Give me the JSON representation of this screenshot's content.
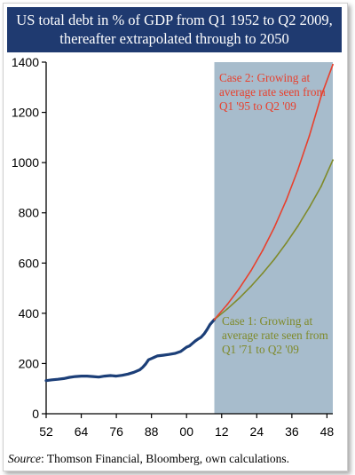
{
  "title": {
    "line1": "US total debt in % of GDP from Q1 1952 to Q2 2009,",
    "line2": "thereafter extrapolated through to 2050"
  },
  "source": {
    "label": "Source",
    "text": ": Thomson Financial, Bloomberg, own calculations."
  },
  "colors": {
    "title_bg": "#1f3a70",
    "history": "#1c3f78",
    "forecast_bg": "#a7bccc",
    "case1": "#7f8a2a",
    "case2": "#e8402d"
  },
  "chart_data": {
    "type": "line",
    "title": "US total debt in % of GDP from Q1 1952 to Q2 2009, thereafter extrapolated through to 2050",
    "xlabel": "",
    "ylabel": "",
    "xlim": [
      1952,
      2050
    ],
    "ylim": [
      0,
      1400
    ],
    "x_tick_labels": [
      "52",
      "64",
      "76",
      "88",
      "00",
      "12",
      "24",
      "36",
      "48"
    ],
    "x_tick_values": [
      1952,
      1964,
      1976,
      1988,
      2000,
      2012,
      2024,
      2036,
      2048
    ],
    "y_ticks": [
      0,
      200,
      400,
      600,
      800,
      1000,
      1200,
      1400
    ],
    "grid": false,
    "shaded_region": {
      "from": 2009.5,
      "to": 2050
    },
    "series": [
      {
        "key": "history",
        "x": [
          1952,
          1954,
          1956,
          1958,
          1960,
          1962,
          1964,
          1966,
          1968,
          1970,
          1972,
          1974,
          1976,
          1978,
          1980,
          1982,
          1984,
          1985,
          1986,
          1987,
          1988,
          1989,
          1990,
          1992,
          1994,
          1996,
          1998,
          2000,
          2001,
          2002,
          2003,
          2004,
          2005,
          2006,
          2007,
          2008,
          2009.5
        ],
        "y": [
          132,
          135,
          137,
          140,
          145,
          148,
          150,
          150,
          148,
          146,
          150,
          152,
          150,
          153,
          158,
          165,
          175,
          185,
          198,
          215,
          220,
          225,
          230,
          233,
          236,
          240,
          248,
          265,
          270,
          280,
          290,
          298,
          305,
          318,
          335,
          355,
          375
        ]
      },
      {
        "key": "case1",
        "label_lines": [
          "Case 1: Growing at",
          "average rate seen from",
          "Q1 '71 to Q2 '09"
        ],
        "x": [
          2009.5,
          2014,
          2018,
          2022,
          2026,
          2030,
          2034,
          2038,
          2042,
          2046,
          2050
        ],
        "y": [
          375,
          418,
          460,
          507,
          559,
          615,
          678,
          746,
          822,
          905,
          1010
        ]
      },
      {
        "key": "case2",
        "label_lines": [
          "Case 2: Growing at",
          "average rate seen from",
          "Q1 '95 to Q2 '09"
        ],
        "x": [
          2009.5,
          2014,
          2018,
          2022,
          2026,
          2030,
          2034,
          2038,
          2042,
          2046,
          2050
        ],
        "y": [
          375,
          436,
          498,
          569,
          650,
          742,
          848,
          969,
          1107,
          1264,
          1390
        ]
      }
    ]
  }
}
